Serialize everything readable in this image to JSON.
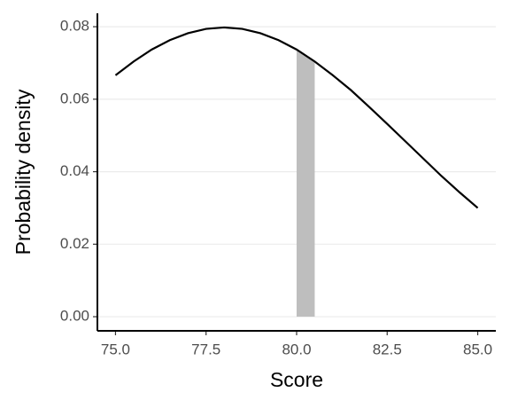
{
  "chart_data": {
    "type": "line",
    "x_label": "Score",
    "y_label": "Probability density",
    "x": [
      75,
      75.5,
      76,
      76.5,
      77,
      77.5,
      78,
      78.5,
      79,
      79.5,
      80,
      80.5,
      81,
      81.5,
      82,
      82.5,
      83,
      83.5,
      84,
      84.5,
      85
    ],
    "values": [
      0.0666,
      0.0704,
      0.0737,
      0.0763,
      0.0782,
      0.0794,
      0.0798,
      0.0794,
      0.0782,
      0.0763,
      0.0737,
      0.0704,
      0.0666,
      0.0625,
      0.0579,
      0.0532,
      0.0484,
      0.0436,
      0.0388,
      0.0343,
      0.03
    ],
    "color": "#000000",
    "highlight": {
      "xrange": [
        80,
        80.5
      ],
      "values": [
        0.0737,
        0.0704
      ],
      "color": "#bebebe"
    },
    "xlim": [
      74.5,
      85.5
    ],
    "ylim": [
      -0.0039,
      0.0837
    ],
    "xticks": [
      {
        "value": 75,
        "label": "75.0"
      },
      {
        "value": 77.5,
        "label": "77.5"
      },
      {
        "value": 80,
        "label": "80.0"
      },
      {
        "value": 82.5,
        "label": "82.5"
      },
      {
        "value": 85,
        "label": "85.0"
      }
    ],
    "yticks": [
      {
        "value": 0,
        "label": "0.00"
      },
      0.02,
      0.04,
      0.06,
      0.08
    ],
    "grid": true
  }
}
